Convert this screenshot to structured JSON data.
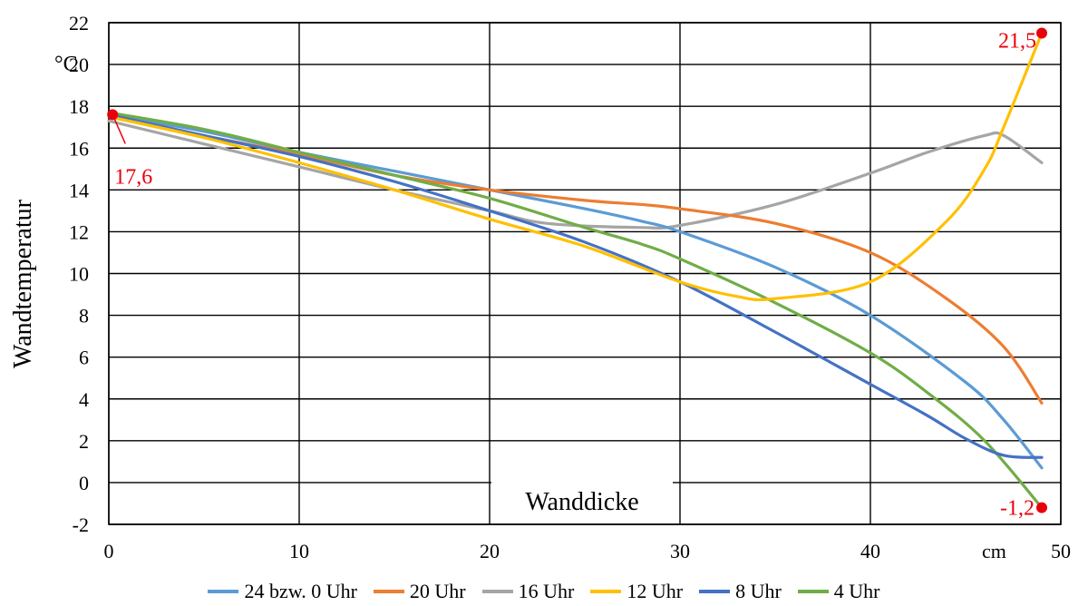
{
  "chart_data": {
    "type": "line",
    "ylabel": "Wandtemperatur",
    "yunit": "°C",
    "xlabel": "Wanddicke",
    "xunit": "cm",
    "xlim": [
      0,
      50
    ],
    "ylim": [
      -2,
      22
    ],
    "xticks": [
      "0",
      "10",
      "20",
      "30",
      "40",
      "50"
    ],
    "yticks": [
      "-2",
      "0",
      "2",
      "4",
      "6",
      "8",
      "10",
      "12",
      "14",
      "16",
      "18",
      "20",
      "22"
    ],
    "grid": true,
    "legend_position": "bottom",
    "series": [
      {
        "name": "24 bzw. 0 Uhr",
        "color": "#5b9bd5",
        "points": [
          [
            0,
            17.6
          ],
          [
            5,
            16.8
          ],
          [
            10,
            15.8
          ],
          [
            15,
            14.9
          ],
          [
            20,
            14.0
          ],
          [
            25,
            13.1
          ],
          [
            28,
            12.5
          ],
          [
            30,
            12.0
          ],
          [
            35,
            10.3
          ],
          [
            40,
            8.0
          ],
          [
            45,
            4.8
          ],
          [
            47,
            3.0
          ],
          [
            49,
            0.7
          ]
        ]
      },
      {
        "name": "20 Uhr",
        "color": "#ed7d31",
        "points": [
          [
            0,
            17.6
          ],
          [
            5,
            16.6
          ],
          [
            10,
            15.7
          ],
          [
            15,
            14.7
          ],
          [
            20,
            14.0
          ],
          [
            25,
            13.5
          ],
          [
            28,
            13.3
          ],
          [
            30,
            13.1
          ],
          [
            35,
            12.4
          ],
          [
            40,
            11.0
          ],
          [
            44,
            8.8
          ],
          [
            47,
            6.5
          ],
          [
            49,
            3.8
          ]
        ]
      },
      {
        "name": "16 Uhr",
        "color": "#a5a5a5",
        "points": [
          [
            0,
            17.3
          ],
          [
            5,
            16.2
          ],
          [
            10,
            15.1
          ],
          [
            15,
            14.0
          ],
          [
            20,
            13.0
          ],
          [
            23,
            12.4
          ],
          [
            28,
            12.2
          ],
          [
            30,
            12.3
          ],
          [
            35,
            13.3
          ],
          [
            40,
            14.8
          ],
          [
            43,
            15.8
          ],
          [
            46,
            16.6
          ],
          [
            47,
            16.6
          ],
          [
            49,
            15.3
          ]
        ]
      },
      {
        "name": "12 Uhr",
        "color": "#ffc000",
        "points": [
          [
            0,
            17.5
          ],
          [
            5,
            16.5
          ],
          [
            10,
            15.3
          ],
          [
            15,
            14.0
          ],
          [
            20,
            12.6
          ],
          [
            25,
            11.3
          ],
          [
            30,
            9.6
          ],
          [
            33,
            8.9
          ],
          [
            35,
            8.8
          ],
          [
            40,
            9.6
          ],
          [
            44,
            12.5
          ],
          [
            46,
            15.0
          ],
          [
            47,
            17.0
          ],
          [
            49,
            21.5
          ]
        ]
      },
      {
        "name": "8 Uhr",
        "color": "#4472c4",
        "points": [
          [
            0,
            17.6
          ],
          [
            5,
            16.6
          ],
          [
            10,
            15.6
          ],
          [
            15,
            14.4
          ],
          [
            20,
            13.0
          ],
          [
            25,
            11.5
          ],
          [
            30,
            9.6
          ],
          [
            35,
            7.2
          ],
          [
            40,
            4.7
          ],
          [
            43,
            3.2
          ],
          [
            45,
            2.1
          ],
          [
            47,
            1.3
          ],
          [
            49,
            1.2
          ]
        ]
      },
      {
        "name": "4 Uhr",
        "color": "#70ad47",
        "points": [
          [
            0,
            17.7
          ],
          [
            5,
            16.9
          ],
          [
            10,
            15.8
          ],
          [
            15,
            14.7
          ],
          [
            20,
            13.6
          ],
          [
            25,
            12.2
          ],
          [
            28,
            11.4
          ],
          [
            30,
            10.7
          ],
          [
            35,
            8.6
          ],
          [
            40,
            6.2
          ],
          [
            43,
            4.3
          ],
          [
            46,
            2.0
          ],
          [
            49,
            -1.2
          ]
        ]
      }
    ],
    "annotations": [
      {
        "label": "17,6",
        "x": 0.2,
        "y": 17.6
      },
      {
        "label": "21,5",
        "x": 49,
        "y": 21.5
      },
      {
        "label": "-1,2",
        "x": 49,
        "y": -1.2
      }
    ],
    "marker_color": "#e8000b"
  }
}
